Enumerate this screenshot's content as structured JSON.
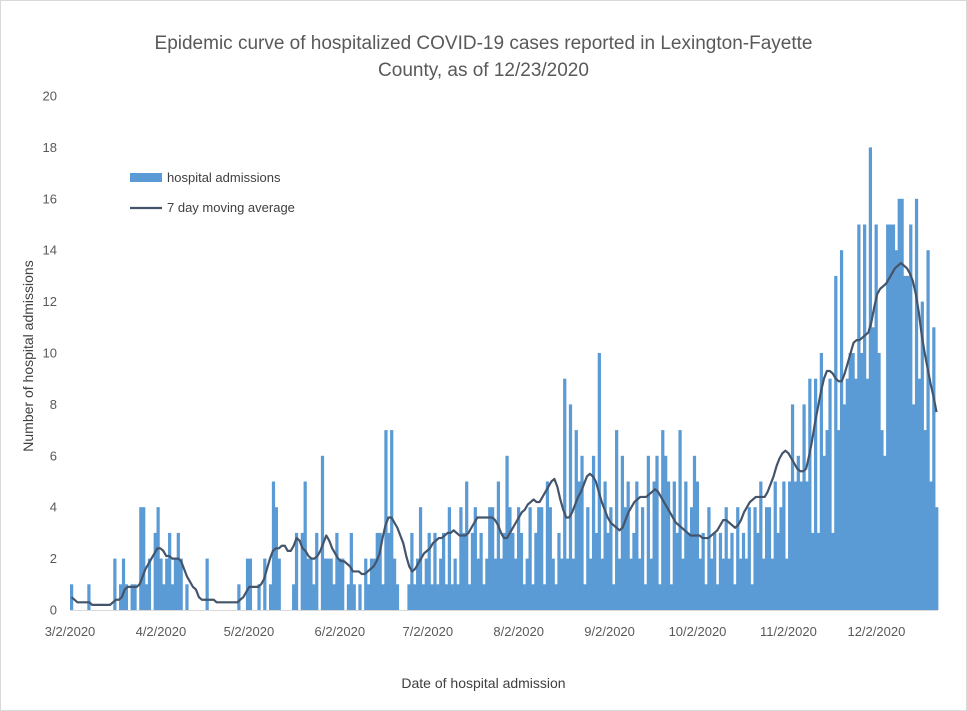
{
  "chart_data": {
    "type": "bar",
    "title_line1": "Epidemic curve of hospitalized COVID-19 cases reported in Lexington-Fayette",
    "title_line2": "County, as of 12/23/2020",
    "xlabel": "Date of hospital admission",
    "ylabel": "Number of hospital admissions",
    "ylim": [
      0,
      20
    ],
    "yticks": [
      "0",
      "2",
      "4",
      "6",
      "8",
      "10",
      "12",
      "14",
      "16",
      "18",
      "20"
    ],
    "x_start": "3/2/2020",
    "x_end": "12/23/2020",
    "xtick_labels": [
      "3/2/2020",
      "4/2/2020",
      "5/2/2020",
      "6/2/2020",
      "7/2/2020",
      "8/2/2020",
      "9/2/2020",
      "10/2/2020",
      "11/2/2020",
      "12/2/2020"
    ],
    "grid": false,
    "legend_position": "upper-left",
    "series": [
      {
        "name": "hospital admissions",
        "kind": "bar",
        "color": "#5b9bd5",
        "values": [
          1,
          0,
          0,
          0,
          0,
          0,
          1,
          0,
          0,
          0,
          0,
          0,
          0,
          0,
          0,
          2,
          0,
          1,
          2,
          1,
          0,
          1,
          1,
          0,
          4,
          4,
          1,
          2,
          0,
          3,
          4,
          2,
          1,
          2,
          3,
          1,
          2,
          3,
          2,
          0,
          1,
          0,
          0,
          0,
          0,
          0,
          0,
          2,
          0,
          0,
          0,
          0,
          0,
          0,
          0,
          0,
          0,
          0,
          1,
          0,
          0,
          2,
          2,
          0,
          0,
          1,
          0,
          2,
          0,
          1,
          5,
          4,
          2,
          0,
          0,
          0,
          0,
          1,
          3,
          0,
          3,
          5,
          2,
          2,
          1,
          3,
          0,
          6,
          2,
          2,
          2,
          1,
          3,
          2,
          2,
          0,
          1,
          3,
          1,
          0,
          1,
          0,
          2,
          1,
          2,
          2,
          3,
          3,
          1,
          7,
          3,
          7,
          2,
          1,
          0,
          0,
          0,
          1,
          3,
          1,
          2,
          4,
          1,
          2,
          3,
          1,
          3,
          1,
          2,
          3,
          1,
          4,
          1,
          2,
          1,
          4,
          3,
          5,
          1,
          3,
          4,
          2,
          3,
          1,
          2,
          4,
          4,
          2,
          5,
          2,
          3,
          6,
          4,
          3,
          2,
          4,
          3,
          1,
          2,
          4,
          1,
          3,
          4,
          4,
          1,
          5,
          4,
          2,
          1,
          3,
          2,
          9,
          2,
          8,
          2,
          7,
          5,
          6,
          1,
          4,
          2,
          6,
          3,
          10,
          2,
          5,
          3,
          4,
          1,
          7,
          2,
          6,
          4,
          5,
          2,
          3,
          5,
          2,
          4,
          1,
          6,
          2,
          5,
          6,
          1,
          7,
          6,
          5,
          1,
          5,
          3,
          7,
          2,
          5,
          3,
          4,
          6,
          5,
          2,
          3,
          1,
          4,
          2,
          3,
          1,
          3,
          2,
          4,
          2,
          3,
          1,
          4,
          2,
          3,
          2,
          4,
          1,
          4,
          3,
          5,
          2,
          4,
          4,
          2,
          5,
          3,
          4,
          5,
          2,
          5,
          8,
          5,
          6,
          5,
          8,
          5,
          9,
          3,
          9,
          3,
          10,
          6,
          7,
          9,
          3,
          13,
          7,
          14,
          8,
          9,
          10,
          10,
          9,
          15,
          10,
          15,
          9,
          18,
          11,
          15,
          10,
          7,
          6,
          15,
          15,
          15,
          14,
          16,
          16,
          13,
          13,
          15,
          8,
          16,
          9,
          12,
          7,
          14,
          5,
          11,
          4
        ]
      },
      {
        "name": "7 day moving average",
        "kind": "line",
        "color": "#44546a",
        "values": [
          0.5,
          0.4,
          0.3,
          0.3,
          0.3,
          0.3,
          0.3,
          0.2,
          0.2,
          0.2,
          0.2,
          0.2,
          0.2,
          0.2,
          0.3,
          0.4,
          0.4,
          0.5,
          0.8,
          0.9,
          0.9,
          0.9,
          0.9,
          1.0,
          1.3,
          1.6,
          1.8,
          2.0,
          2.2,
          2.4,
          2.4,
          2.3,
          2.1,
          2.1,
          2.0,
          2.0,
          2.0,
          1.9,
          1.6,
          1.3,
          1.1,
          0.9,
          0.8,
          0.5,
          0.4,
          0.4,
          0.4,
          0.4,
          0.4,
          0.3,
          0.3,
          0.3,
          0.3,
          0.3,
          0.3,
          0.3,
          0.3,
          0.4,
          0.5,
          0.7,
          0.9,
          0.9,
          0.9,
          0.9,
          1.0,
          1.2,
          1.6,
          2.0,
          2.3,
          2.4,
          2.4,
          2.5,
          2.5,
          2.3,
          2.3,
          2.5,
          2.8,
          2.7,
          2.4,
          2.3,
          2.1,
          2.0,
          2.0,
          2.1,
          2.3,
          2.6,
          2.9,
          2.7,
          2.4,
          2.2,
          2.0,
          1.9,
          1.9,
          1.8,
          1.7,
          1.5,
          1.5,
          1.5,
          1.4,
          1.4,
          1.5,
          1.6,
          1.7,
          1.9,
          2.2,
          2.8,
          3.3,
          3.6,
          3.6,
          3.4,
          3.2,
          2.9,
          2.6,
          2.1,
          1.7,
          1.5,
          1.6,
          1.8,
          2.0,
          2.2,
          2.3,
          2.4,
          2.6,
          2.7,
          2.8,
          2.8,
          2.9,
          3.0,
          3.0,
          3.1,
          3.0,
          2.9,
          2.9,
          2.9,
          3.0,
          3.2,
          3.4,
          3.6,
          3.6,
          3.6,
          3.6,
          3.6,
          3.6,
          3.5,
          3.3,
          3.0,
          2.8,
          2.8,
          3.0,
          3.2,
          3.4,
          3.6,
          3.8,
          3.9,
          4.1,
          4.2,
          4.3,
          4.2,
          4.2,
          4.4,
          4.6,
          4.8,
          5.0,
          5.1,
          4.8,
          4.3,
          3.9,
          3.6,
          3.6,
          3.8,
          4.1,
          4.4,
          4.6,
          4.9,
          5.2,
          5.3,
          5.2,
          5.0,
          4.6,
          4.2,
          3.9,
          3.6,
          3.4,
          3.3,
          3.2,
          3.1,
          3.2,
          3.5,
          3.8,
          4.0,
          4.2,
          4.3,
          4.4,
          4.4,
          4.4,
          4.5,
          4.6,
          4.7,
          4.6,
          4.4,
          4.2,
          4.0,
          3.8,
          3.6,
          3.4,
          3.3,
          3.2,
          3.1,
          3.0,
          2.9,
          2.9,
          2.9,
          2.9,
          2.8,
          2.8,
          2.8,
          2.9,
          3.0,
          3.1,
          3.3,
          3.5,
          3.5,
          3.4,
          3.3,
          3.2,
          3.3,
          3.5,
          3.8,
          4.0,
          4.2,
          4.3,
          4.4,
          4.4,
          4.4,
          4.4,
          4.6,
          4.9,
          5.2,
          5.6,
          5.9,
          6.1,
          6.2,
          6.1,
          5.9,
          5.7,
          5.5,
          5.4,
          5.4,
          5.5,
          6.0,
          6.6,
          7.3,
          7.9,
          8.5,
          9.0,
          9.3,
          9.3,
          9.2,
          9.0,
          8.9,
          8.9,
          9.2,
          9.6,
          10.0,
          10.4,
          10.5,
          10.5,
          10.6,
          10.7,
          10.8,
          11.2,
          11.8,
          12.3,
          12.5,
          12.6,
          12.7,
          12.9,
          13.1,
          13.3,
          13.4,
          13.5,
          13.4,
          13.3,
          13.1,
          12.8,
          12.3,
          11.6,
          10.7,
          10.0,
          9.4,
          8.8,
          8.3,
          7.7
        ]
      }
    ]
  }
}
